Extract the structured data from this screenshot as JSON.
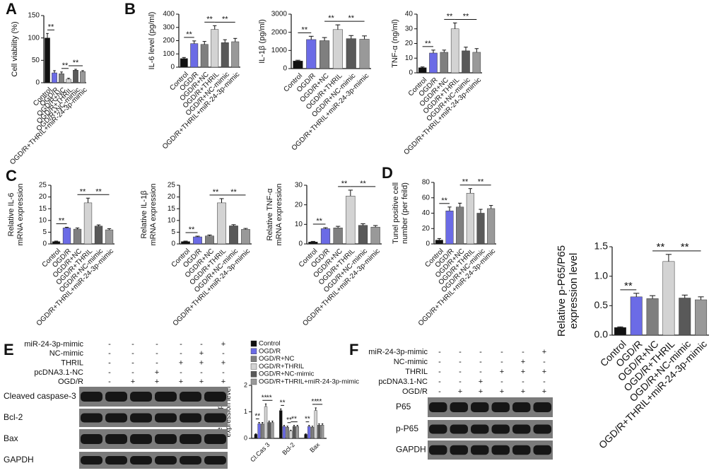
{
  "panel_labels": [
    "A",
    "B",
    "C",
    "D",
    "E",
    "F"
  ],
  "chart_data": [
    {
      "type": "bar",
      "ylabel": [
        "Cell viability (%)"
      ],
      "categories": [
        "Control",
        "OGD/R",
        "OGD/R+NC",
        "OGD/R+THRIL",
        "OGD/R+NC-mimic",
        "OGD/R+THRIL+miR-24-3p-mimic"
      ],
      "values": [
        100,
        22,
        20,
        8,
        28,
        25
      ],
      "errors": [
        10,
        5,
        4,
        2,
        2,
        2
      ],
      "colors": [
        "#111111",
        "#6b6be6",
        "#7f7f7f",
        "#d3d3d3",
        "#595959",
        "#999999"
      ],
      "ylim": [
        0,
        150
      ],
      "yticks": [
        0,
        50,
        100,
        150
      ],
      "significance": [
        {
          "label": "**",
          "pair": [
            0,
            1
          ]
        },
        {
          "label": "**",
          "pair": [
            2,
            3
          ]
        },
        {
          "label": "**",
          "pair": [
            3,
            5
          ]
        }
      ]
    },
    {
      "type": "bar",
      "ylabel": [
        "IL-6 level (pg/ml)"
      ],
      "categories": [
        "Control",
        "OGD/R",
        "OGD/R+NC",
        "OGD/R+THRIL",
        "OGD/R+NC-mimic",
        "OGD/R+THRIL+miR-24-3p-mimic"
      ],
      "values": [
        65,
        178,
        172,
        285,
        185,
        192
      ],
      "errors": [
        8,
        20,
        22,
        28,
        22,
        25
      ],
      "colors": [
        "#111111",
        "#6b6be6",
        "#7f7f7f",
        "#d3d3d3",
        "#595959",
        "#999999"
      ],
      "ylim": [
        0,
        400
      ],
      "yticks": [
        0,
        100,
        200,
        300,
        400
      ],
      "significance": [
        {
          "label": "**",
          "pair": [
            0,
            1
          ]
        },
        {
          "label": "**",
          "pair": [
            2,
            3
          ]
        },
        {
          "label": "**",
          "pair": [
            3,
            5
          ]
        }
      ]
    },
    {
      "type": "bar",
      "ylabel": [
        "IL-1β (pg/ml)"
      ],
      "categories": [
        "Control",
        "OGD/R",
        "OGD/R+NC",
        "OGD/R+THRIL",
        "OGD/R+NC-mimic",
        "OGD/R+THRIL+miR-24-3p-mimic"
      ],
      "values": [
        420,
        1600,
        1540,
        2150,
        1650,
        1620
      ],
      "errors": [
        40,
        180,
        170,
        260,
        170,
        180
      ],
      "colors": [
        "#111111",
        "#6b6be6",
        "#7f7f7f",
        "#d3d3d3",
        "#595959",
        "#999999"
      ],
      "ylim": [
        0,
        3000
      ],
      "yticks": [
        0,
        1000,
        2000,
        3000
      ],
      "significance": [
        {
          "label": "**",
          "pair": [
            0,
            1
          ]
        },
        {
          "label": "**",
          "pair": [
            2,
            3
          ]
        },
        {
          "label": "**",
          "pair": [
            3,
            5
          ]
        }
      ]
    },
    {
      "type": "bar",
      "ylabel": [
        "TNF-α (ng/ml)"
      ],
      "categories": [
        "Control",
        "OGD/R",
        "OGD/R+NC",
        "OGD/R+THRIL",
        "OGD/R+NC-mimic",
        "OGD/R+THRIL+miR-24-3p-mimic"
      ],
      "values": [
        3.5,
        13.5,
        14,
        30,
        15,
        14
      ],
      "errors": [
        0.5,
        2,
        1.5,
        4,
        2.5,
        2.5
      ],
      "colors": [
        "#111111",
        "#6b6be6",
        "#7f7f7f",
        "#d3d3d3",
        "#595959",
        "#999999"
      ],
      "ylim": [
        0,
        40
      ],
      "yticks": [
        0,
        10,
        20,
        30,
        40
      ],
      "significance": [
        {
          "label": "**",
          "pair": [
            0,
            1
          ]
        },
        {
          "label": "**",
          "pair": [
            2,
            3
          ]
        },
        {
          "label": "**",
          "pair": [
            3,
            5
          ]
        }
      ]
    },
    {
      "type": "bar",
      "ylabel": [
        "Relative IL-6",
        "mRNA expression"
      ],
      "categories": [
        "Control",
        "OGD/R",
        "OGD/R+NC",
        "OGD/R+THRIL",
        "OGD/R+NC-mimic",
        "OGD/R+THRIL+miR-24-3p-mimic"
      ],
      "values": [
        1,
        6.8,
        6.3,
        17.5,
        7.6,
        6
      ],
      "errors": [
        0.2,
        0.3,
        0.5,
        2,
        0.5,
        0.5
      ],
      "colors": [
        "#111111",
        "#6b6be6",
        "#7f7f7f",
        "#d3d3d3",
        "#595959",
        "#999999"
      ],
      "ylim": [
        0,
        25
      ],
      "yticks": [
        0,
        5,
        10,
        15,
        20,
        25
      ],
      "significance": [
        {
          "label": "**",
          "pair": [
            0,
            1
          ]
        },
        {
          "label": "**",
          "pair": [
            2,
            3
          ]
        },
        {
          "label": "**",
          "pair": [
            3,
            5
          ]
        }
      ]
    },
    {
      "type": "bar",
      "ylabel": [
        "Relative IL-1β",
        "mRNA expression"
      ],
      "categories": [
        "Control",
        "OGD/R",
        "OGD/R+NC",
        "OGD/R+THRIL",
        "OGD/R+NC-mimic",
        "OGD/R+THRIL+miR-24-3p-mimic"
      ],
      "values": [
        1,
        3,
        3.4,
        17.5,
        7.7,
        6.2
      ],
      "errors": [
        0.2,
        0.3,
        0.4,
        1.8,
        0.5,
        0.4
      ],
      "colors": [
        "#111111",
        "#6b6be6",
        "#7f7f7f",
        "#d3d3d3",
        "#595959",
        "#999999"
      ],
      "ylim": [
        0,
        25
      ],
      "yticks": [
        0,
        5,
        10,
        15,
        20,
        25
      ],
      "significance": [
        {
          "label": "**",
          "pair": [
            0,
            1
          ]
        },
        {
          "label": "**",
          "pair": [
            2,
            3
          ]
        },
        {
          "label": "**",
          "pair": [
            3,
            5
          ]
        }
      ]
    },
    {
      "type": "bar",
      "ylabel": [
        "Relative TNF-α",
        "mRNA expression"
      ],
      "categories": [
        "Control",
        "OGD/R",
        "OGD/R+NC",
        "OGD/R+THRIL",
        "OGD/R+NC-mimic",
        "OGD/R+THRIL+miR-24-3p-mimic"
      ],
      "values": [
        1,
        7.8,
        8.2,
        24.5,
        9.5,
        8.6
      ],
      "errors": [
        0.3,
        0.5,
        0.8,
        3,
        0.8,
        0.8
      ],
      "colors": [
        "#111111",
        "#6b6be6",
        "#7f7f7f",
        "#d3d3d3",
        "#595959",
        "#999999"
      ],
      "ylim": [
        0,
        30
      ],
      "yticks": [
        0,
        10,
        20,
        30
      ],
      "significance": [
        {
          "label": "**",
          "pair": [
            0,
            1
          ]
        },
        {
          "label": "**",
          "pair": [
            2,
            3
          ]
        },
        {
          "label": "**",
          "pair": [
            3,
            5
          ]
        }
      ]
    },
    {
      "type": "bar",
      "ylabel": [
        "Tunel positive cell",
        "number (per feild)"
      ],
      "categories": [
        "Control",
        "OGD/R",
        "OGD/R+NC",
        "OGD/R+THRIL",
        "OGD/R+NC-mimic",
        "OGD/R+THRIL+miR-24-3p-mimic"
      ],
      "values": [
        5,
        43,
        48,
        66,
        40,
        46
      ],
      "errors": [
        2,
        5,
        5,
        6,
        5,
        4
      ],
      "colors": [
        "#111111",
        "#6b6be6",
        "#7f7f7f",
        "#d3d3d3",
        "#595959",
        "#999999"
      ],
      "ylim": [
        0,
        80
      ],
      "yticks": [
        0,
        20,
        40,
        60,
        80
      ],
      "significance": [
        {
          "label": "**",
          "pair": [
            0,
            1
          ]
        },
        {
          "label": "**",
          "pair": [
            2,
            3
          ]
        },
        {
          "label": "**",
          "pair": [
            3,
            5
          ]
        }
      ]
    },
    {
      "type": "bar",
      "ylabel": [
        "Relative p-P65/P65",
        "expression level"
      ],
      "categories": [
        "Control",
        "OGD/R",
        "OGD/R+NC",
        "OGD/R+THRIL",
        "OGD/R+NC-mimic",
        "OGD/R+THRIL+miR-24-3p-mimic"
      ],
      "values": [
        0.13,
        0.65,
        0.62,
        1.25,
        0.63,
        0.6
      ],
      "errors": [
        0.01,
        0.06,
        0.05,
        0.12,
        0.05,
        0.05
      ],
      "colors": [
        "#111111",
        "#6b6be6",
        "#7f7f7f",
        "#d3d3d3",
        "#595959",
        "#999999"
      ],
      "ylim": [
        0,
        1.5
      ],
      "yticks": [
        {
          "value": 0,
          "label": "0.0"
        },
        {
          "value": 0.5,
          "label": "0.5"
        },
        {
          "value": 1,
          "label": "1.0"
        },
        {
          "value": 1.5,
          "label": "1.5"
        }
      ],
      "significance": [
        {
          "label": "**",
          "pair": [
            0,
            1
          ]
        },
        {
          "label": "**",
          "pair": [
            2,
            3
          ]
        },
        {
          "label": "**",
          "pair": [
            3,
            5
          ]
        }
      ]
    },
    {
      "type": "grouped_bar",
      "ylabel": [
        "Relative protein",
        "expression level"
      ],
      "categories": [
        "Cl.Cas 3",
        "Bcl-2",
        "Bax"
      ],
      "series": [
        {
          "name": "Control",
          "color": "#111111",
          "values": [
            0.15,
            1.05,
            0.15
          ],
          "errors": [
            0.02,
            0.06,
            0.02
          ]
        },
        {
          "name": "OGD/R",
          "color": "#6b6be6",
          "values": [
            0.55,
            0.45,
            0.45
          ],
          "errors": [
            0.05,
            0.04,
            0.04
          ]
        },
        {
          "name": "OGD/R+NC",
          "color": "#7f7f7f",
          "values": [
            0.55,
            0.42,
            0.42
          ],
          "errors": [
            0.05,
            0.04,
            0.04
          ]
        },
        {
          "name": "OGD/R+THRIL",
          "color": "#d3d3d3",
          "values": [
            1.2,
            0.28,
            1.05
          ],
          "errors": [
            0.1,
            0.03,
            0.1
          ]
        },
        {
          "name": "OGD/R+NC-mimic",
          "color": "#595959",
          "values": [
            0.6,
            0.45,
            0.5
          ],
          "errors": [
            0.05,
            0.04,
            0.05
          ]
        },
        {
          "name": "OGD/R+THRIL+miR-24-3p-mimic",
          "color": "#999999",
          "values": [
            0.6,
            0.45,
            0.5
          ],
          "errors": [
            0.05,
            0.04,
            0.05
          ]
        }
      ],
      "ylim": [
        0,
        2
      ],
      "yticks": [
        0,
        1,
        2
      ],
      "significance": [
        {
          "label": "**",
          "group": 0,
          "pair": [
            0,
            1
          ]
        },
        {
          "label": "**",
          "group": 0,
          "pair": [
            2,
            3
          ]
        },
        {
          "label": "**",
          "group": 0,
          "pair": [
            3,
            5
          ]
        },
        {
          "label": "**",
          "group": 1,
          "pair": [
            0,
            1
          ]
        },
        {
          "label": "**",
          "group": 1,
          "pair": [
            2,
            3
          ]
        },
        {
          "label": "**",
          "group": 1,
          "pair": [
            3,
            5
          ]
        },
        {
          "label": "**",
          "group": 2,
          "pair": [
            0,
            1
          ]
        },
        {
          "label": "**",
          "group": 2,
          "pair": [
            2,
            3
          ]
        },
        {
          "label": "**",
          "group": 2,
          "pair": [
            3,
            5
          ]
        }
      ]
    }
  ],
  "blots": [
    {
      "treatments": [
        {
          "label": "miR-24-3p-mimic",
          "marks": [
            "-",
            "-",
            "-",
            "-",
            "-",
            "+"
          ]
        },
        {
          "label": "NC-mimic",
          "marks": [
            "-",
            "-",
            "-",
            "-",
            "+",
            "-"
          ]
        },
        {
          "label": "THRIL",
          "marks": [
            "-",
            "-",
            "-",
            "+",
            "+",
            "+"
          ]
        },
        {
          "label": "pcDNA3.1-NC",
          "marks": [
            "-",
            "-",
            "+",
            "-",
            "-",
            "-"
          ]
        },
        {
          "label": "OGD/R",
          "marks": [
            "-",
            "+",
            "+",
            "+",
            "+",
            "+"
          ]
        }
      ],
      "bands": [
        "Cleaved caspase-3",
        "Bcl-2",
        "Bax",
        "GAPDH"
      ]
    },
    {
      "treatments": [
        {
          "label": "miR-24-3p-mimic",
          "marks": [
            "-",
            "-",
            "-",
            "-",
            "-",
            "+"
          ]
        },
        {
          "label": "NC-mimic",
          "marks": [
            "-",
            "-",
            "-",
            "-",
            "+",
            "-"
          ]
        },
        {
          "label": "THRIL",
          "marks": [
            "-",
            "-",
            "-",
            "+",
            "+",
            "+"
          ]
        },
        {
          "label": "pcDNA3.1-NC",
          "marks": [
            "-",
            "-",
            "+",
            "-",
            "-",
            "-"
          ]
        },
        {
          "label": "OGD/R",
          "marks": [
            "-",
            "+",
            "+",
            "+",
            "+",
            "+"
          ]
        }
      ],
      "bands": [
        "P65",
        "p-P65",
        "GAPDH"
      ]
    }
  ]
}
